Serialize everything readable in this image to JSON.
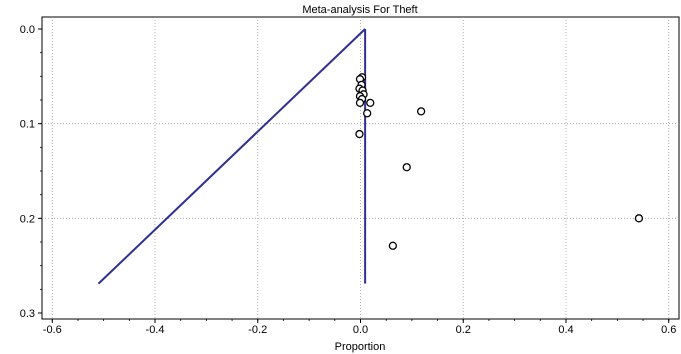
{
  "chart_data": {
    "type": "scatter",
    "title": "Meta-analysis For Theft",
    "xlabel": "Proportion",
    "ylabel": "",
    "xlim": [
      -0.62,
      0.62
    ],
    "ylim": [
      0.0,
      0.3
    ],
    "y_inverted": true,
    "x_ticks": [
      -0.6,
      -0.4,
      -0.2,
      0.0,
      0.2,
      0.4,
      0.6
    ],
    "x_tick_labels": [
      "-0.6",
      "-0.4",
      "-0.2",
      "0.0",
      "0.2",
      "0.4",
      "0.6"
    ],
    "y_ticks": [
      0.0,
      0.1,
      0.2,
      0.3
    ],
    "y_tick_labels": [
      "0.0",
      "0.1",
      "0.2",
      "0.3"
    ],
    "grid": true,
    "series": [
      {
        "marker": "circle-open",
        "points": [
          {
            "x": 0.003,
            "y": 0.051
          },
          {
            "x": -0.001,
            "y": 0.053
          },
          {
            "x": 0.002,
            "y": 0.059
          },
          {
            "x": -0.002,
            "y": 0.063
          },
          {
            "x": 0.004,
            "y": 0.065
          },
          {
            "x": 0.006,
            "y": 0.069
          },
          {
            "x": -0.001,
            "y": 0.071
          },
          {
            "x": 0.003,
            "y": 0.074
          },
          {
            "x": -0.001,
            "y": 0.078
          },
          {
            "x": 0.019,
            "y": 0.078
          },
          {
            "x": 0.118,
            "y": 0.087
          },
          {
            "x": 0.013,
            "y": 0.089
          },
          {
            "x": -0.002,
            "y": 0.111
          },
          {
            "x": 0.09,
            "y": 0.146
          },
          {
            "x": 0.542,
            "y": 0.2
          },
          {
            "x": 0.063,
            "y": 0.229
          }
        ]
      }
    ],
    "reference_lines": [
      {
        "points": [
          [
            0.009,
            0.0
          ],
          [
            -0.51,
            0.269
          ]
        ]
      },
      {
        "points": [
          [
            0.009,
            0.0
          ],
          [
            0.009,
            0.269
          ]
        ]
      }
    ],
    "colors": {
      "line": "#2e3192",
      "grid": "#a0a0a0",
      "marker": "#000000"
    }
  }
}
